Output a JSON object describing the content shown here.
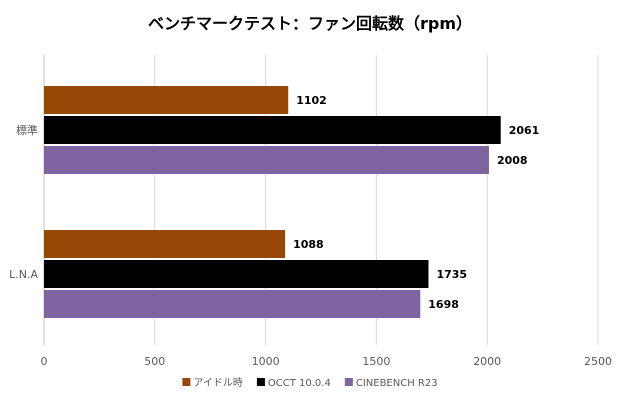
{
  "chart_data": {
    "type": "bar",
    "orientation": "horizontal",
    "title": "ベンチマークテスト：ファン回転数（rpm）",
    "categories": [
      "標準",
      "L.N.A"
    ],
    "series": [
      {
        "name": "アイドル時",
        "values": [
          1102,
          1088
        ],
        "color": "#974706"
      },
      {
        "name": "OCCT 10.0.4",
        "values": [
          2061,
          1735
        ],
        "color": "#000000"
      },
      {
        "name": "CINEBENCH R23",
        "values": [
          2008,
          1698
        ],
        "color": "#8064A2"
      }
    ],
    "x_ticks": [
      "0",
      "500",
      "1000",
      "1500",
      "2000",
      "2500"
    ],
    "xlim": [
      0,
      2500
    ],
    "xlabel": "",
    "ylabel": "",
    "grid": "vertical",
    "legend_position": "bottom",
    "data_labels": true
  }
}
